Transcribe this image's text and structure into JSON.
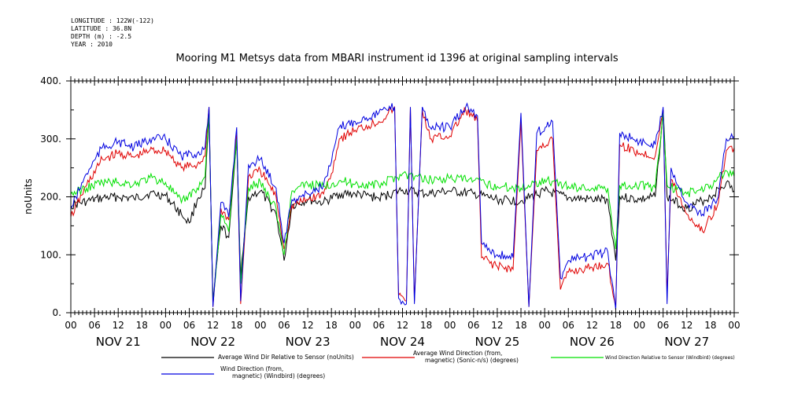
{
  "header": {
    "meta_lines": [
      "LONGITUDE : 122W(-122)",
      "LATITUDE : 36.8N",
      "DEPTH (m) : -2.5",
      "YEAR : 2010"
    ],
    "title": "Mooring M1 Metsys data from MBARI instrument id 1396 at original sampling intervals"
  },
  "colors": {
    "black": "#000000",
    "red": "#e00000",
    "green": "#00e000",
    "blue": "#0000e0"
  },
  "chart_data": {
    "type": "line",
    "title": "Mooring M1 Metsys data from MBARI instrument id 1396 at original sampling intervals",
    "ylabel": "noUnits",
    "xlabel": "",
    "ylim": [
      0,
      400
    ],
    "y_ticks": [
      "0.",
      "100.",
      "200.",
      "300.",
      "400."
    ],
    "xlim": [
      "2010-11-21T00:00",
      "2010-11-28T00:00"
    ],
    "x_hour_ticks": [
      "00",
      "06",
      "12",
      "18",
      "00",
      "06",
      "12",
      "18",
      "00",
      "06",
      "12",
      "18",
      "00",
      "06",
      "12",
      "18",
      "00",
      "06",
      "12",
      "18",
      "00",
      "06",
      "12",
      "18",
      "00",
      "06",
      "12",
      "18",
      "00"
    ],
    "x_day_labels": [
      "NOV 21",
      "NOV 22",
      "NOV 23",
      "NOV 24",
      "NOV 25",
      "NOV 26",
      "NOV 27"
    ],
    "grid": false,
    "legend_position": "bottom",
    "series": [
      {
        "name": "Average Wind Dir Relative to Sensor (noUnits)",
        "color": "#000000",
        "points": [
          [
            "2010-11-21T00:00",
            185
          ],
          [
            "2010-11-21T04:00",
            192
          ],
          [
            "2010-11-21T08:00",
            198
          ],
          [
            "2010-11-21T12:00",
            200
          ],
          [
            "2010-11-21T16:00",
            197
          ],
          [
            "2010-11-21T20:00",
            206
          ],
          [
            "2010-11-22T00:00",
            202
          ],
          [
            "2010-11-22T04:00",
            170
          ],
          [
            "2010-11-22T06:00",
            155
          ],
          [
            "2010-11-22T08:00",
            195
          ],
          [
            "2010-11-22T10:00",
            215
          ],
          [
            "2010-11-22T11:00",
            340
          ],
          [
            "2010-11-22T12:00",
            20
          ],
          [
            "2010-11-22T14:00",
            150
          ],
          [
            "2010-11-22T16:00",
            130
          ],
          [
            "2010-11-22T18:00",
            300
          ],
          [
            "2010-11-22T19:00",
            60
          ],
          [
            "2010-11-22T21:00",
            200
          ],
          [
            "2010-11-23T00:00",
            210
          ],
          [
            "2010-11-23T04:00",
            170
          ],
          [
            "2010-11-23T06:00",
            90
          ],
          [
            "2010-11-23T08:00",
            185
          ],
          [
            "2010-11-23T12:00",
            195
          ],
          [
            "2010-11-23T16:00",
            190
          ],
          [
            "2010-11-23T20:00",
            205
          ],
          [
            "2010-11-24T00:00",
            205
          ],
          [
            "2010-11-24T06:00",
            198
          ],
          [
            "2010-11-24T12:00",
            212
          ],
          [
            "2010-11-24T18:00",
            205
          ],
          [
            "2010-11-25T00:00",
            210
          ],
          [
            "2010-11-25T06:00",
            205
          ],
          [
            "2010-11-25T12:00",
            195
          ],
          [
            "2010-11-25T18:00",
            193
          ],
          [
            "2010-11-26T00:00",
            210
          ],
          [
            "2010-11-26T06:00",
            198
          ],
          [
            "2010-11-26T12:00",
            195
          ],
          [
            "2010-11-26T16:00",
            195
          ],
          [
            "2010-11-26T18:00",
            90
          ],
          [
            "2010-11-26T19:00",
            200
          ],
          [
            "2010-11-27T00:00",
            195
          ],
          [
            "2010-11-27T04:00",
            200
          ],
          [
            "2010-11-27T06:00",
            350
          ],
          [
            "2010-11-27T07:00",
            200
          ],
          [
            "2010-11-27T12:00",
            180
          ],
          [
            "2010-11-27T18:00",
            200
          ],
          [
            "2010-11-27T22:00",
            225
          ],
          [
            "2010-11-28T00:00",
            210
          ]
        ]
      },
      {
        "name": "Average Wind Direction (from, magnetic) (Sonic-n/s) (degrees)",
        "color": "#e00000",
        "points": [
          [
            "2010-11-21T00:00",
            165
          ],
          [
            "2010-11-21T04:00",
            220
          ],
          [
            "2010-11-21T08:00",
            265
          ],
          [
            "2010-11-21T12:00",
            275
          ],
          [
            "2010-11-21T16:00",
            268
          ],
          [
            "2010-11-21T20:00",
            280
          ],
          [
            "2010-11-22T00:00",
            280
          ],
          [
            "2010-11-22T04:00",
            250
          ],
          [
            "2010-11-22T08:00",
            255
          ],
          [
            "2010-11-22T10:00",
            270
          ],
          [
            "2010-11-22T11:00",
            355
          ],
          [
            "2010-11-22T12:00",
            10
          ],
          [
            "2010-11-22T14:00",
            180
          ],
          [
            "2010-11-22T16:00",
            160
          ],
          [
            "2010-11-22T18:00",
            310
          ],
          [
            "2010-11-22T19:00",
            15
          ],
          [
            "2010-11-22T21:00",
            235
          ],
          [
            "2010-11-23T00:00",
            245
          ],
          [
            "2010-11-23T04:00",
            200
          ],
          [
            "2010-11-23T06:00",
            110
          ],
          [
            "2010-11-23T08:00",
            185
          ],
          [
            "2010-11-23T12:00",
            195
          ],
          [
            "2010-11-23T16:00",
            205
          ],
          [
            "2010-11-23T18:00",
            240
          ],
          [
            "2010-11-23T20:00",
            300
          ],
          [
            "2010-11-24T00:00",
            315
          ],
          [
            "2010-11-24T06:00",
            330
          ],
          [
            "2010-11-24T08:00",
            340
          ],
          [
            "2010-11-24T10:00",
            355
          ],
          [
            "2010-11-24T11:00",
            30
          ],
          [
            "2010-11-24T13:00",
            20
          ],
          [
            "2010-11-24T14:00",
            355
          ],
          [
            "2010-11-24T15:00",
            20
          ],
          [
            "2010-11-24T17:00",
            350
          ],
          [
            "2010-11-24T19:00",
            300
          ],
          [
            "2010-11-25T00:00",
            305
          ],
          [
            "2010-11-25T04:00",
            350
          ],
          [
            "2010-11-25T07:00",
            330
          ],
          [
            "2010-11-25T08:00",
            95
          ],
          [
            "2010-11-25T12:00",
            80
          ],
          [
            "2010-11-25T16:00",
            75
          ],
          [
            "2010-11-25T18:00",
            330
          ],
          [
            "2010-11-25T20:00",
            10
          ],
          [
            "2010-11-25T22:00",
            280
          ],
          [
            "2010-11-26T02:00",
            300
          ],
          [
            "2010-11-26T04:00",
            40
          ],
          [
            "2010-11-26T06:00",
            70
          ],
          [
            "2010-11-26T12:00",
            78
          ],
          [
            "2010-11-26T16:00",
            85
          ],
          [
            "2010-11-26T18:00",
            10
          ],
          [
            "2010-11-26T19:00",
            290
          ],
          [
            "2010-11-27T00:00",
            275
          ],
          [
            "2010-11-27T04:00",
            270
          ],
          [
            "2010-11-27T06:00",
            350
          ],
          [
            "2010-11-27T07:00",
            30
          ],
          [
            "2010-11-27T08:00",
            230
          ],
          [
            "2010-11-27T12:00",
            170
          ],
          [
            "2010-11-27T16:00",
            140
          ],
          [
            "2010-11-27T20:00",
            190
          ],
          [
            "2010-11-27T22:00",
            280
          ],
          [
            "2010-11-28T00:00",
            285
          ]
        ]
      },
      {
        "name": "Wind Direction Relative to Sensor (Windbird) (degrees)",
        "color": "#00e000",
        "points": [
          [
            "2010-11-21T00:00",
            205
          ],
          [
            "2010-11-21T04:00",
            215
          ],
          [
            "2010-11-21T08:00",
            225
          ],
          [
            "2010-11-21T12:00",
            225
          ],
          [
            "2010-11-21T16:00",
            222
          ],
          [
            "2010-11-21T20:00",
            233
          ],
          [
            "2010-11-22T00:00",
            225
          ],
          [
            "2010-11-22T04:00",
            190
          ],
          [
            "2010-11-22T08:00",
            215
          ],
          [
            "2010-11-22T10:00",
            235
          ],
          [
            "2010-11-22T11:00",
            350
          ],
          [
            "2010-11-22T12:00",
            15
          ],
          [
            "2010-11-22T14:00",
            170
          ],
          [
            "2010-11-22T16:00",
            140
          ],
          [
            "2010-11-22T18:00",
            300
          ],
          [
            "2010-11-22T19:00",
            50
          ],
          [
            "2010-11-22T21:00",
            215
          ],
          [
            "2010-11-23T00:00",
            225
          ],
          [
            "2010-11-23T04:00",
            180
          ],
          [
            "2010-11-23T06:00",
            100
          ],
          [
            "2010-11-23T08:00",
            210
          ],
          [
            "2010-11-23T12:00",
            222
          ],
          [
            "2010-11-23T16:00",
            218
          ],
          [
            "2010-11-23T20:00",
            228
          ],
          [
            "2010-11-24T00:00",
            222
          ],
          [
            "2010-11-24T06:00",
            220
          ],
          [
            "2010-11-24T12:00",
            240
          ],
          [
            "2010-11-24T18:00",
            230
          ],
          [
            "2010-11-25T00:00",
            232
          ],
          [
            "2010-11-25T06:00",
            228
          ],
          [
            "2010-11-25T12:00",
            218
          ],
          [
            "2010-11-25T18:00",
            215
          ],
          [
            "2010-11-26T00:00",
            230
          ],
          [
            "2010-11-26T06:00",
            218
          ],
          [
            "2010-11-26T12:00",
            215
          ],
          [
            "2010-11-26T16:00",
            215
          ],
          [
            "2010-11-26T18:00",
            110
          ],
          [
            "2010-11-26T19:00",
            220
          ],
          [
            "2010-11-27T00:00",
            220
          ],
          [
            "2010-11-27T04:00",
            215
          ],
          [
            "2010-11-27T06:00",
            345
          ],
          [
            "2010-11-27T07:00",
            220
          ],
          [
            "2010-11-27T12:00",
            205
          ],
          [
            "2010-11-27T18:00",
            220
          ],
          [
            "2010-11-27T22:00",
            245
          ],
          [
            "2010-11-28T00:00",
            235
          ]
        ]
      },
      {
        "name": "Wind Direction (from, magnetic) (Windbird) (degrees)",
        "color": "#0000e0",
        "points": [
          [
            "2010-11-21T00:00",
            180
          ],
          [
            "2010-11-21T04:00",
            240
          ],
          [
            "2010-11-21T08:00",
            285
          ],
          [
            "2010-11-21T12:00",
            295
          ],
          [
            "2010-11-21T16:00",
            285
          ],
          [
            "2010-11-21T20:00",
            300
          ],
          [
            "2010-11-22T00:00",
            300
          ],
          [
            "2010-11-22T04:00",
            270
          ],
          [
            "2010-11-22T08:00",
            275
          ],
          [
            "2010-11-22T10:00",
            285
          ],
          [
            "2010-11-22T11:00",
            355
          ],
          [
            "2010-11-22T12:00",
            10
          ],
          [
            "2010-11-22T14:00",
            190
          ],
          [
            "2010-11-22T16:00",
            165
          ],
          [
            "2010-11-22T18:00",
            320
          ],
          [
            "2010-11-22T19:00",
            20
          ],
          [
            "2010-11-22T21:00",
            255
          ],
          [
            "2010-11-23T00:00",
            265
          ],
          [
            "2010-11-23T04:00",
            215
          ],
          [
            "2010-11-23T06:00",
            120
          ],
          [
            "2010-11-23T08:00",
            195
          ],
          [
            "2010-11-23T12:00",
            205
          ],
          [
            "2010-11-23T16:00",
            220
          ],
          [
            "2010-11-23T18:00",
            260
          ],
          [
            "2010-11-23T20:00",
            320
          ],
          [
            "2010-11-24T00:00",
            330
          ],
          [
            "2010-11-24T06:00",
            345
          ],
          [
            "2010-11-24T08:00",
            350
          ],
          [
            "2010-11-24T10:00",
            355
          ],
          [
            "2010-11-24T11:00",
            25
          ],
          [
            "2010-11-24T13:00",
            15
          ],
          [
            "2010-11-24T14:00",
            355
          ],
          [
            "2010-11-24T15:00",
            15
          ],
          [
            "2010-11-24T17:00",
            355
          ],
          [
            "2010-11-24T19:00",
            320
          ],
          [
            "2010-11-25T00:00",
            320
          ],
          [
            "2010-11-25T04:00",
            355
          ],
          [
            "2010-11-25T07:00",
            340
          ],
          [
            "2010-11-25T08:00",
            120
          ],
          [
            "2010-11-25T12:00",
            100
          ],
          [
            "2010-11-25T16:00",
            95
          ],
          [
            "2010-11-25T18:00",
            345
          ],
          [
            "2010-11-25T20:00",
            10
          ],
          [
            "2010-11-25T22:00",
            310
          ],
          [
            "2010-11-26T02:00",
            330
          ],
          [
            "2010-11-26T04:00",
            60
          ],
          [
            "2010-11-26T06:00",
            90
          ],
          [
            "2010-11-26T12:00",
            98
          ],
          [
            "2010-11-26T16:00",
            105
          ],
          [
            "2010-11-26T18:00",
            5
          ],
          [
            "2010-11-26T19:00",
            310
          ],
          [
            "2010-11-27T00:00",
            295
          ],
          [
            "2010-11-27T04:00",
            290
          ],
          [
            "2010-11-27T06:00",
            355
          ],
          [
            "2010-11-27T07:00",
            15
          ],
          [
            "2010-11-27T08:00",
            250
          ],
          [
            "2010-11-27T12:00",
            190
          ],
          [
            "2010-11-27T16:00",
            170
          ],
          [
            "2010-11-27T20:00",
            200
          ],
          [
            "2010-11-27T22:00",
            300
          ],
          [
            "2010-11-28T00:00",
            305
          ]
        ]
      }
    ],
    "legend": [
      {
        "label_lines": [
          "Average Wind Dir Relative to Sensor (noUnits)"
        ],
        "color": "#000000"
      },
      {
        "label_lines": [
          "Average Wind Direction (from,",
          "magnetic) (Sonic-n/s) (degrees)"
        ],
        "color": "#e00000"
      },
      {
        "label_lines": [
          "Wind Direction Relative to Sensor (Windbird) (degrees)"
        ],
        "color": "#00e000"
      },
      {
        "label_lines": [
          "Wind Direction (from,",
          "magnetic) (Windbird) (degrees)"
        ],
        "color": "#0000e0"
      }
    ]
  }
}
